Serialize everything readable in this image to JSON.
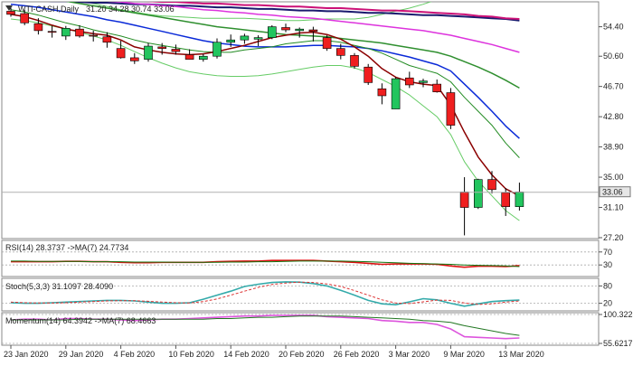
{
  "header": {
    "symbol": "WTI-CASH,Daily",
    "ohlc": "31.20 34.28 30.74 33.06"
  },
  "colors": {
    "up": "#22c55e",
    "down": "#ef1f1f",
    "sma5": "#8b0000",
    "sma10": "#228b22",
    "sma20": "#0a2ad8",
    "sma50": "#2f8f2f",
    "sma100": "#dd33dd",
    "sma200": "#cc1177",
    "sma200b": "#1a1a6e",
    "bb": "#66cc66",
    "rsi": "#dd1111",
    "rsi_ma": "#117711",
    "stoch_k": "#33aaaa",
    "stoch_d": "#dd3333",
    "mom": "#dd55dd",
    "mom_ma": "#227722"
  },
  "chart_data": [
    {
      "type": "candlestick",
      "title": "WTI-CASH,Daily",
      "ylim": [
        27.2,
        57.5
      ],
      "yticks": [
        "54.40",
        "50.60",
        "46.70",
        "42.80",
        "38.90",
        "35.00",
        "31.10",
        "27.20"
      ],
      "current_price": "33.06",
      "xlabels": [
        "23 Jan 2020",
        "29 Jan 2020",
        "4 Feb 2020",
        "10 Feb 2020",
        "14 Feb 2020",
        "20 Feb 2020",
        "26 Feb 2020",
        "3 Mar 2020",
        "9 Mar 2020",
        "13 Mar 2020"
      ],
      "xlabel_index": [
        0,
        4,
        8,
        12,
        16,
        20,
        24,
        28,
        32,
        36
      ],
      "candles": [
        {
          "o": 56.4,
          "h": 56.9,
          "l": 55.7,
          "c": 56.0
        },
        {
          "o": 56.1,
          "h": 56.6,
          "l": 54.6,
          "c": 54.9
        },
        {
          "o": 54.8,
          "h": 55.5,
          "l": 53.4,
          "c": 53.9
        },
        {
          "o": 53.8,
          "h": 54.5,
          "l": 53.0,
          "c": 53.7
        },
        {
          "o": 53.2,
          "h": 54.5,
          "l": 52.7,
          "c": 54.2
        },
        {
          "o": 54.1,
          "h": 54.6,
          "l": 53.0,
          "c": 53.2
        },
        {
          "o": 53.3,
          "h": 53.9,
          "l": 52.5,
          "c": 53.2
        },
        {
          "o": 53.1,
          "h": 53.7,
          "l": 51.7,
          "c": 52.4
        },
        {
          "o": 51.6,
          "h": 52.6,
          "l": 50.3,
          "c": 50.4
        },
        {
          "o": 50.4,
          "h": 51.0,
          "l": 49.6,
          "c": 50.0
        },
        {
          "o": 50.2,
          "h": 52.3,
          "l": 49.9,
          "c": 51.9
        },
        {
          "o": 51.8,
          "h": 52.3,
          "l": 50.8,
          "c": 51.6
        },
        {
          "o": 51.5,
          "h": 52.1,
          "l": 50.8,
          "c": 51.2
        },
        {
          "o": 50.8,
          "h": 51.5,
          "l": 50.2,
          "c": 50.2
        },
        {
          "o": 50.2,
          "h": 50.9,
          "l": 49.9,
          "c": 50.6
        },
        {
          "o": 50.6,
          "h": 52.9,
          "l": 50.3,
          "c": 52.4
        },
        {
          "o": 52.4,
          "h": 53.4,
          "l": 51.8,
          "c": 52.7
        },
        {
          "o": 52.7,
          "h": 53.5,
          "l": 52.2,
          "c": 53.2
        },
        {
          "o": 52.8,
          "h": 53.3,
          "l": 51.9,
          "c": 53.0
        },
        {
          "o": 53.0,
          "h": 54.6,
          "l": 52.8,
          "c": 54.4
        },
        {
          "o": 54.3,
          "h": 54.8,
          "l": 53.7,
          "c": 54.0
        },
        {
          "o": 53.9,
          "h": 54.3,
          "l": 53.0,
          "c": 54.1
        },
        {
          "o": 54.0,
          "h": 54.4,
          "l": 52.5,
          "c": 53.8
        },
        {
          "o": 53.0,
          "h": 53.3,
          "l": 51.3,
          "c": 51.6
        },
        {
          "o": 51.6,
          "h": 52.2,
          "l": 50.2,
          "c": 50.7
        },
        {
          "o": 50.7,
          "h": 51.0,
          "l": 49.0,
          "c": 49.3
        },
        {
          "o": 49.2,
          "h": 49.6,
          "l": 46.9,
          "c": 47.2
        },
        {
          "o": 46.4,
          "h": 47.1,
          "l": 44.4,
          "c": 45.5
        },
        {
          "o": 43.8,
          "h": 47.9,
          "l": 43.8,
          "c": 47.7
        },
        {
          "o": 47.8,
          "h": 48.6,
          "l": 46.5,
          "c": 46.9
        },
        {
          "o": 47.2,
          "h": 47.7,
          "l": 46.6,
          "c": 47.4
        },
        {
          "o": 47.0,
          "h": 47.6,
          "l": 45.9,
          "c": 46.0
        },
        {
          "o": 45.9,
          "h": 46.5,
          "l": 41.2,
          "c": 41.7
        },
        {
          "o": 33.1,
          "h": 35.0,
          "l": 27.5,
          "c": 31.1
        },
        {
          "o": 31.1,
          "h": 34.8,
          "l": 30.9,
          "c": 34.7
        },
        {
          "o": 34.7,
          "h": 35.8,
          "l": 32.9,
          "c": 33.4
        },
        {
          "o": 33.0,
          "h": 33.6,
          "l": 30.0,
          "c": 31.2
        },
        {
          "o": 31.2,
          "h": 34.3,
          "l": 30.7,
          "c": 33.1
        }
      ],
      "indicators": {
        "sma5": [
          56.0,
          55.7,
          55.2,
          54.6,
          54.1,
          53.8,
          53.5,
          53.3,
          52.7,
          51.8,
          51.4,
          51.1,
          50.9,
          50.8,
          50.9,
          51.2,
          51.6,
          52.0,
          52.5,
          53.0,
          53.3,
          53.6,
          53.7,
          53.4,
          52.8,
          51.8,
          50.6,
          49.0,
          47.9,
          47.3,
          47.0,
          46.8,
          44.3,
          40.8,
          37.6,
          35.3,
          33.5,
          32.6
        ],
        "sma10": [
          56.6,
          56.3,
          55.9,
          55.4,
          54.9,
          54.5,
          54.0,
          53.6,
          53.2,
          52.7,
          52.3,
          52.0,
          51.7,
          51.4,
          51.2,
          51.1,
          51.1,
          51.4,
          51.6,
          51.8,
          52.2,
          52.4,
          52.6,
          52.6,
          52.4,
          52.0,
          51.6,
          51.0,
          50.2,
          49.4,
          48.9,
          48.4,
          47.3,
          45.3,
          43.5,
          41.7,
          39.4,
          37.5
        ],
        "sma20": [
          57.3,
          57.1,
          56.9,
          56.6,
          56.3,
          56.0,
          55.7,
          55.3,
          55.0,
          54.6,
          54.2,
          53.8,
          53.4,
          53.0,
          52.6,
          52.3,
          52.1,
          51.9,
          51.8,
          51.8,
          51.8,
          51.9,
          52.0,
          52.0,
          51.9,
          51.8,
          51.6,
          51.3,
          50.9,
          50.5,
          50.0,
          49.5,
          48.7,
          47.0,
          45.3,
          43.5,
          41.6,
          40.0
        ],
        "sma50": [
          58.6,
          58.4,
          58.2,
          58.0,
          57.7,
          57.4,
          57.1,
          56.8,
          56.5,
          56.2,
          55.9,
          55.6,
          55.3,
          55.0,
          54.7,
          54.4,
          54.2,
          54.0,
          53.8,
          53.6,
          53.4,
          53.3,
          53.2,
          53.1,
          52.9,
          52.7,
          52.5,
          52.3,
          52.0,
          51.7,
          51.4,
          51.1,
          50.6,
          49.9,
          49.2,
          48.4,
          47.5,
          46.5
        ],
        "sma100": [
          58.5,
          58.4,
          58.3,
          58.2,
          58.1,
          58.0,
          57.9,
          57.7,
          57.6,
          57.4,
          57.3,
          57.1,
          57.0,
          56.8,
          56.6,
          56.5,
          56.3,
          56.2,
          56.0,
          55.9,
          55.7,
          55.6,
          55.5,
          55.3,
          55.1,
          54.9,
          54.7,
          54.5,
          54.3,
          54.1,
          53.9,
          53.6,
          53.3,
          52.9,
          52.5,
          52.1,
          51.6,
          51.1
        ],
        "sma200": [
          58.4,
          58.3,
          58.2,
          58.2,
          58.1,
          58.0,
          58.0,
          57.9,
          57.8,
          57.8,
          57.7,
          57.6,
          57.6,
          57.5,
          57.4,
          57.4,
          57.3,
          57.2,
          57.2,
          57.1,
          57.0,
          57.0,
          56.9,
          56.8,
          56.8,
          56.7,
          56.6,
          56.5,
          56.5,
          56.4,
          56.3,
          56.2,
          56.1,
          56.0,
          55.8,
          55.7,
          55.5,
          55.4
        ],
        "sma200b": [
          57.9,
          57.8,
          57.8,
          57.7,
          57.7,
          57.6,
          57.5,
          57.5,
          57.4,
          57.3,
          57.3,
          57.2,
          57.1,
          57.1,
          57.0,
          56.9,
          56.9,
          56.8,
          56.7,
          56.7,
          56.6,
          56.5,
          56.5,
          56.4,
          56.4,
          56.3,
          56.2,
          56.2,
          56.1,
          56.0,
          55.9,
          55.9,
          55.8,
          55.7,
          55.6,
          55.5,
          55.4,
          55.2
        ],
        "bb_upper": [
          59.0,
          58.9,
          58.7,
          58.5,
          58.2,
          57.8,
          57.4,
          57.0,
          56.6,
          56.3,
          56.0,
          55.8,
          55.7,
          55.6,
          55.5,
          55.5,
          55.5,
          55.5,
          55.4,
          55.3,
          55.2,
          55.2,
          55.3,
          55.4,
          55.4,
          55.4,
          55.6,
          56.0,
          56.4,
          56.8,
          57.3,
          57.9,
          58.8,
          60.5,
          62.0,
          63.2,
          64.0,
          64.5
        ],
        "bb_lower": [
          55.4,
          55.2,
          54.9,
          54.5,
          54.1,
          53.7,
          53.2,
          52.7,
          52.0,
          51.2,
          50.4,
          49.7,
          49.1,
          48.6,
          48.3,
          48.1,
          48.0,
          48.0,
          48.1,
          48.3,
          48.6,
          48.9,
          49.2,
          49.4,
          49.4,
          49.1,
          48.5,
          47.6,
          46.7,
          45.6,
          44.2,
          42.8,
          40.5,
          37.0,
          34.5,
          32.6,
          30.7,
          29.4
        ]
      }
    },
    {
      "type": "line",
      "title": "RSI(14) 28.3737 ->MA(7) 24.7734",
      "ylim": [
        0,
        100
      ],
      "yticks": [
        "70",
        "30"
      ],
      "series": [
        {
          "name": "RSI(14)",
          "values": [
            40,
            40,
            40,
            40,
            41,
            41,
            40,
            40,
            38,
            37,
            37,
            38,
            38,
            38,
            38,
            40,
            41,
            42,
            42,
            44,
            44,
            44,
            44,
            42,
            40,
            38,
            35,
            32,
            33,
            33,
            33,
            32,
            27,
            23,
            26,
            26,
            25,
            28
          ]
        },
        {
          "name": "MA(7)",
          "values": [
            42,
            42,
            41,
            41,
            41,
            41,
            40,
            40,
            40,
            39,
            39,
            39,
            38,
            38,
            38,
            38,
            39,
            39,
            40,
            40,
            41,
            42,
            42,
            42,
            42,
            41,
            40,
            38,
            37,
            35,
            34,
            33,
            32,
            30,
            29,
            28,
            27,
            25
          ]
        }
      ]
    },
    {
      "type": "line",
      "title": "Stoch(5,3,3) 31.1097 28.4090",
      "ylim": [
        0,
        100
      ],
      "yticks": [
        "80",
        "20"
      ],
      "series": [
        {
          "name": "%K",
          "values": [
            22,
            20,
            20,
            22,
            24,
            26,
            28,
            30,
            30,
            28,
            24,
            20,
            20,
            22,
            34,
            48,
            62,
            78,
            86,
            92,
            94,
            93,
            88,
            80,
            65,
            48,
            30,
            18,
            15,
            25,
            36,
            32,
            20,
            10,
            18,
            26,
            29,
            31
          ]
        },
        {
          "name": "%D",
          "values": [
            24,
            22,
            21,
            21,
            22,
            24,
            26,
            28,
            29,
            29,
            27,
            24,
            22,
            21,
            26,
            35,
            48,
            62,
            75,
            85,
            90,
            93,
            92,
            87,
            78,
            64,
            48,
            32,
            21,
            19,
            25,
            31,
            30,
            21,
            16,
            18,
            24,
            28
          ]
        }
      ]
    },
    {
      "type": "line",
      "title": "Momentum(14) 64.3942 ->MA(7) 68.4663",
      "ylim": [
        55.6217,
        100.3223
      ],
      "yticks": [
        "100.3223",
        "55.6217"
      ],
      "series": [
        {
          "name": "Momentum(14)",
          "values": [
            92,
            93,
            93,
            92,
            94,
            94,
            93,
            93,
            92,
            91,
            92,
            93,
            93,
            94,
            95,
            96,
            97,
            98,
            98,
            99,
            99,
            99,
            99,
            97,
            96,
            95,
            94,
            91,
            90,
            88,
            88,
            85,
            78,
            66,
            65,
            64,
            63,
            64
          ]
        },
        {
          "name": "MA(7)",
          "values": [
            92,
            92,
            92,
            92,
            92,
            93,
            93,
            93,
            93,
            93,
            93,
            93,
            93,
            93,
            93,
            94,
            94,
            95,
            96,
            96,
            97,
            98,
            98,
            98,
            98,
            97,
            96,
            95,
            94,
            93,
            91,
            90,
            88,
            83,
            79,
            75,
            71,
            68
          ]
        }
      ]
    }
  ]
}
